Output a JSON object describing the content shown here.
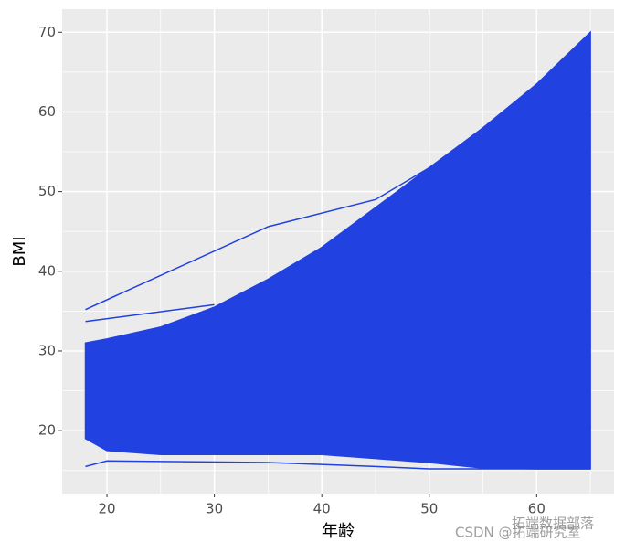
{
  "chart_data": {
    "type": "line",
    "x_label": "年龄",
    "y_label": "BMI",
    "xlim": [
      15.83,
      67.2
    ],
    "ylim": [
      12.1,
      72.9
    ],
    "xticks": [
      20,
      30,
      40,
      50,
      60
    ],
    "yticks": [
      20,
      30,
      40,
      50,
      60,
      70
    ],
    "xminor": [
      25,
      35,
      45,
      55,
      65
    ],
    "yminor": [
      15,
      25,
      35,
      45,
      55,
      65
    ],
    "grid": true,
    "color": "#2141e0",
    "x": [
      18,
      20,
      25,
      30,
      35,
      40,
      45,
      50,
      55,
      60,
      65
    ],
    "band": {
      "upper": [
        31,
        31.5,
        33,
        35.5,
        39,
        43,
        48,
        53,
        58,
        63.5,
        70
      ],
      "lower": [
        19,
        17.5,
        17,
        17,
        17,
        17,
        16.5,
        16,
        15.3,
        15.2,
        15.2
      ]
    },
    "lines": [
      {
        "x": [
          18,
          35,
          45,
          50
        ],
        "values": [
          35.2,
          45.6,
          49,
          53
        ]
      },
      {
        "x": [
          18,
          30
        ],
        "values": [
          33.7,
          35.8
        ]
      },
      {
        "x": [
          18,
          20,
          35,
          45,
          50,
          65
        ],
        "values": [
          15.5,
          16.2,
          16,
          15.5,
          15.2,
          15.2
        ]
      }
    ],
    "annotations": [
      "CSDN @拓端研究室",
      "拓端数据部落"
    ]
  }
}
